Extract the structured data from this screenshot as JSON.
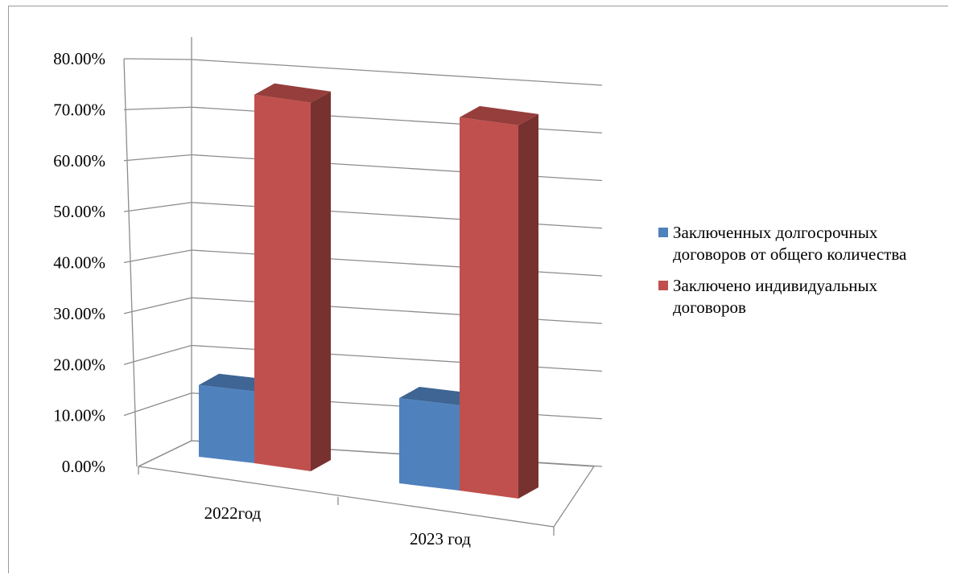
{
  "chart_data": {
    "type": "bar",
    "subtype": "3d-clustered-column",
    "categories": [
      "2022год",
      "2023 год"
    ],
    "series": [
      {
        "name": "Заключенных долгосрочных договоров от общего количества",
        "values": [
          0.16,
          0.19
        ],
        "color": "#4f81bd"
      },
      {
        "name": "Заключено индивидуальных договоров",
        "values": [
          0.78,
          0.79
        ],
        "color": "#c0504d"
      }
    ],
    "ylim": [
      0,
      0.8
    ],
    "yticks": [
      "0.00%",
      "10.00%",
      "20.00%",
      "30.00%",
      "40.00%",
      "50.00%",
      "60.00%",
      "70.00%",
      "80.00%"
    ],
    "title": "",
    "xlabel": "",
    "ylabel": "",
    "grid": true,
    "legend_position": "right"
  }
}
